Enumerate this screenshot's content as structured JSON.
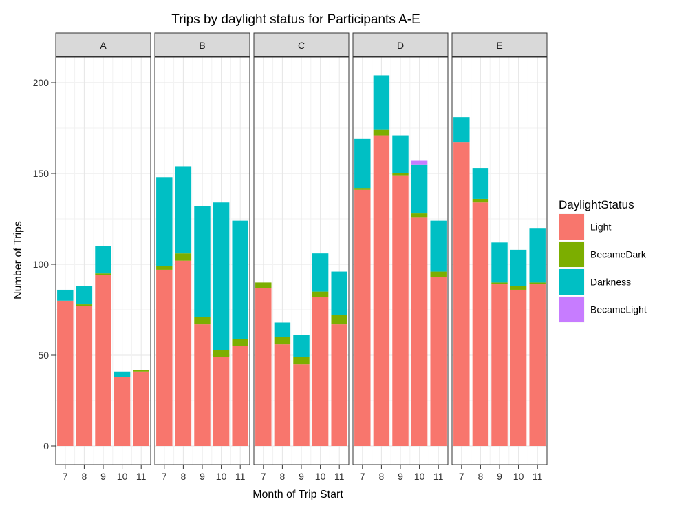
{
  "chart_data": {
    "type": "bar",
    "stacked": true,
    "faceted": true,
    "title": "Trips by daylight status for Participants A-E",
    "xlabel": "Month of Trip Start",
    "ylabel": "Number of Trips",
    "ylim": [
      0,
      210
    ],
    "yticks": [
      0,
      50,
      100,
      150,
      200
    ],
    "grid": true,
    "legend_position": "right",
    "legend_title": "DaylightStatus",
    "categories": [
      "7",
      "8",
      "9",
      "10",
      "11"
    ],
    "series_order": [
      "Light",
      "BecameDark",
      "Darkness",
      "BecameLight"
    ],
    "colors": {
      "Light": "#F8766D",
      "BecameDark": "#7CAE00",
      "Darkness": "#00BFC4",
      "BecameLight": "#C77CFF"
    },
    "facets": [
      {
        "label": "A",
        "series": [
          {
            "name": "Light",
            "values": [
              80,
              77,
              94,
              38,
              41
            ]
          },
          {
            "name": "BecameDark",
            "values": [
              0,
              1,
              1,
              0,
              1
            ]
          },
          {
            "name": "Darkness",
            "values": [
              6,
              10,
              15,
              3,
              0
            ]
          },
          {
            "name": "BecameLight",
            "values": [
              0,
              0,
              0,
              0,
              0
            ]
          }
        ]
      },
      {
        "label": "B",
        "series": [
          {
            "name": "Light",
            "values": [
              97,
              102,
              67,
              49,
              55
            ]
          },
          {
            "name": "BecameDark",
            "values": [
              2,
              4,
              4,
              4,
              4
            ]
          },
          {
            "name": "Darkness",
            "values": [
              49,
              48,
              61,
              81,
              65
            ]
          },
          {
            "name": "BecameLight",
            "values": [
              0,
              0,
              0,
              0,
              0
            ]
          }
        ]
      },
      {
        "label": "C",
        "series": [
          {
            "name": "Light",
            "values": [
              87,
              56,
              45,
              82,
              67
            ]
          },
          {
            "name": "BecameDark",
            "values": [
              3,
              4,
              4,
              3,
              5
            ]
          },
          {
            "name": "Darkness",
            "values": [
              0,
              8,
              12,
              21,
              24
            ]
          },
          {
            "name": "BecameLight",
            "values": [
              0,
              0,
              0,
              0,
              0
            ]
          }
        ]
      },
      {
        "label": "D",
        "series": [
          {
            "name": "Light",
            "values": [
              141,
              171,
              149,
              126,
              93
            ]
          },
          {
            "name": "BecameDark",
            "values": [
              1,
              3,
              1,
              2,
              3
            ]
          },
          {
            "name": "Darkness",
            "values": [
              27,
              30,
              21,
              27,
              28
            ]
          },
          {
            "name": "BecameLight",
            "values": [
              0,
              0,
              0,
              2,
              0
            ]
          }
        ]
      },
      {
        "label": "E",
        "series": [
          {
            "name": "Light",
            "values": [
              167,
              134,
              89,
              86,
              89
            ]
          },
          {
            "name": "BecameDark",
            "values": [
              0,
              2,
              1,
              2,
              1
            ]
          },
          {
            "name": "Darkness",
            "values": [
              14,
              17,
              22,
              20,
              30
            ]
          },
          {
            "name": "BecameLight",
            "values": [
              0,
              0,
              0,
              0,
              0
            ]
          }
        ]
      }
    ]
  }
}
